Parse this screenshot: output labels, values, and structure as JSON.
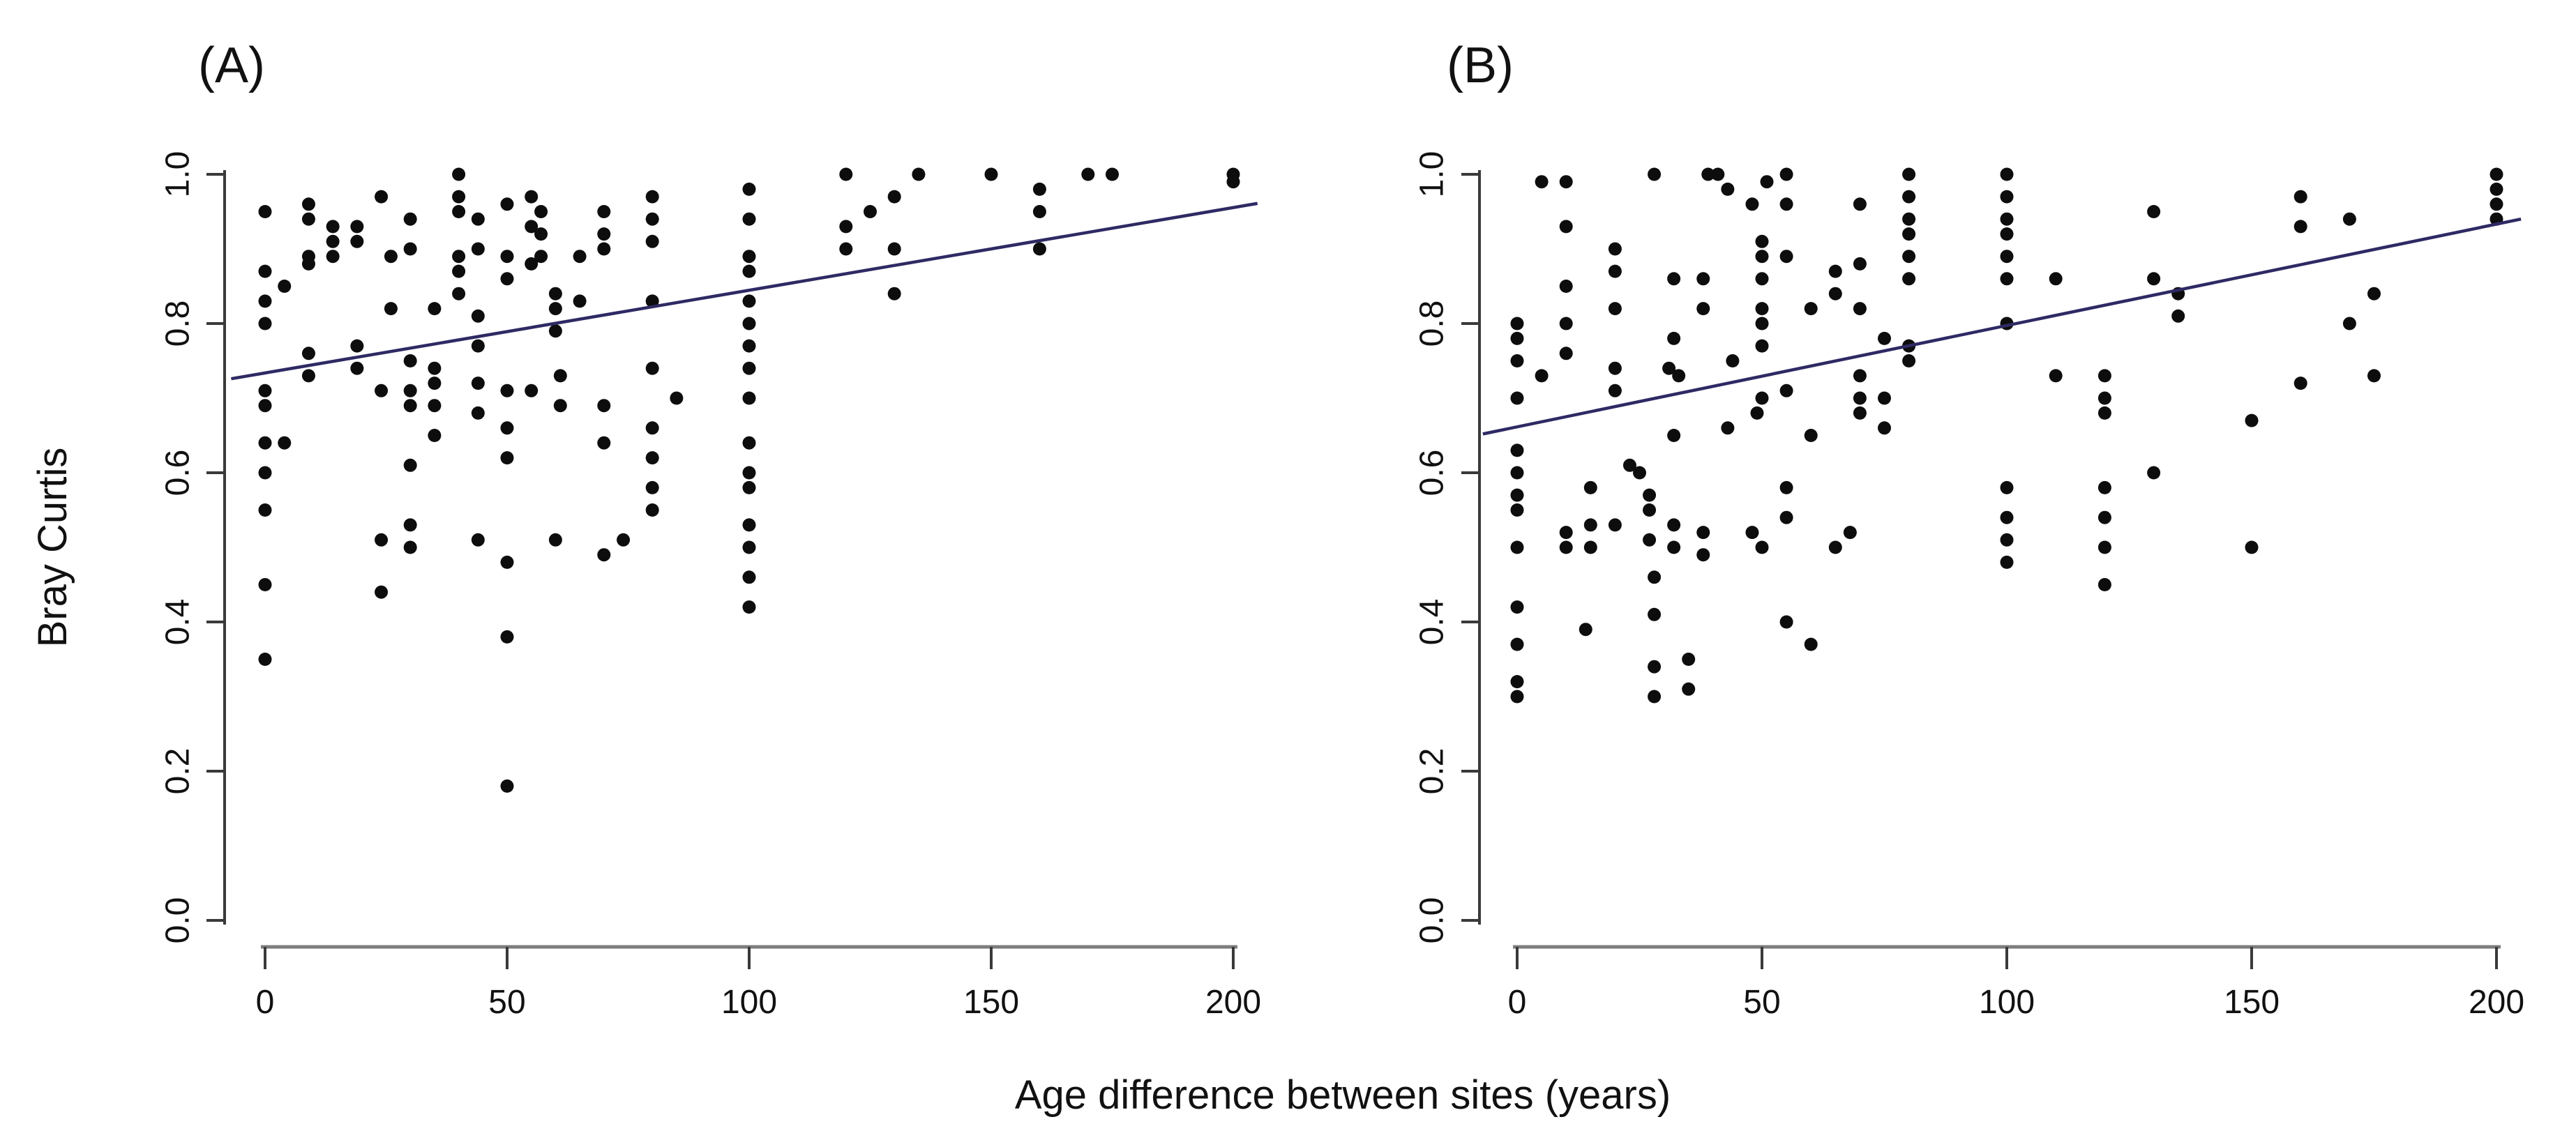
{
  "figure": {
    "xlabel": "Age difference between sites (years)",
    "ylabel": "Bray Curtis",
    "background_color": "#ffffff",
    "point_color": "#0d0d0d",
    "regression_line_color": "#2e2a64",
    "y_axis_color": "#3a3a3a",
    "x_axis_color": "#7d7d7d",
    "text_color": "#111111"
  },
  "chart_data": [
    {
      "type": "scatter",
      "panel_label": "(A)",
      "xlabel": "Age difference between sites (years)",
      "ylabel": "Bray Curtis",
      "x_tick_labels": [
        "0",
        "50",
        "100",
        "150",
        "200"
      ],
      "x_tick_values": [
        0,
        50,
        100,
        150,
        200
      ],
      "y_tick_labels": [
        "0.0",
        "0.2",
        "0.4",
        "0.6",
        "0.8",
        "1.0"
      ],
      "y_tick_values": [
        0.0,
        0.2,
        0.4,
        0.6,
        0.8,
        1.0
      ],
      "xlim": [
        -8,
        207
      ],
      "ylim": [
        -0.04,
        1.03
      ],
      "grid": false,
      "legend": "none",
      "regression_line": {
        "x_start": -7,
        "y_start": 0.726,
        "x_end": 205,
        "y_end": 0.961
      },
      "points": [
        [
          0,
          0.95
        ],
        [
          0,
          0.87
        ],
        [
          0,
          0.83
        ],
        [
          0,
          0.8
        ],
        [
          0,
          0.71
        ],
        [
          0,
          0.69
        ],
        [
          0,
          0.64
        ],
        [
          0,
          0.6
        ],
        [
          0,
          0.55
        ],
        [
          0,
          0.45
        ],
        [
          0,
          0.35
        ],
        [
          4,
          0.85
        ],
        [
          4,
          0.64
        ],
        [
          9,
          0.96
        ],
        [
          9,
          0.94
        ],
        [
          9,
          0.89
        ],
        [
          9,
          0.88
        ],
        [
          9,
          0.76
        ],
        [
          9,
          0.73
        ],
        [
          14,
          0.93
        ],
        [
          14,
          0.91
        ],
        [
          14,
          0.89
        ],
        [
          19,
          0.93
        ],
        [
          19,
          0.91
        ],
        [
          19,
          0.77
        ],
        [
          19,
          0.74
        ],
        [
          24,
          0.97
        ],
        [
          24,
          0.71
        ],
        [
          24,
          0.51
        ],
        [
          24,
          0.44
        ],
        [
          26,
          0.89
        ],
        [
          26,
          0.82
        ],
        [
          30,
          0.94
        ],
        [
          30,
          0.9
        ],
        [
          30,
          0.75
        ],
        [
          30,
          0.71
        ],
        [
          30,
          0.69
        ],
        [
          30,
          0.61
        ],
        [
          30,
          0.53
        ],
        [
          30,
          0.5
        ],
        [
          35,
          0.82
        ],
        [
          35,
          0.74
        ],
        [
          35,
          0.72
        ],
        [
          35,
          0.69
        ],
        [
          35,
          0.65
        ],
        [
          40,
          1.0
        ],
        [
          40,
          0.97
        ],
        [
          40,
          0.95
        ],
        [
          40,
          0.89
        ],
        [
          40,
          0.87
        ],
        [
          40,
          0.84
        ],
        [
          44,
          0.94
        ],
        [
          44,
          0.9
        ],
        [
          44,
          0.81
        ],
        [
          44,
          0.77
        ],
        [
          44,
          0.72
        ],
        [
          44,
          0.68
        ],
        [
          44,
          0.51
        ],
        [
          50,
          0.96
        ],
        [
          50,
          0.89
        ],
        [
          50,
          0.86
        ],
        [
          50,
          0.71
        ],
        [
          50,
          0.66
        ],
        [
          50,
          0.62
        ],
        [
          50,
          0.48
        ],
        [
          50,
          0.38
        ],
        [
          50,
          0.18
        ],
        [
          55,
          0.97
        ],
        [
          55,
          0.93
        ],
        [
          55,
          0.88
        ],
        [
          55,
          0.71
        ],
        [
          57,
          0.95
        ],
        [
          57,
          0.92
        ],
        [
          57,
          0.89
        ],
        [
          60,
          0.84
        ],
        [
          60,
          0.82
        ],
        [
          60,
          0.79
        ],
        [
          60,
          0.51
        ],
        [
          61,
          0.73
        ],
        [
          61,
          0.69
        ],
        [
          65,
          0.89
        ],
        [
          65,
          0.83
        ],
        [
          70,
          0.95
        ],
        [
          70,
          0.92
        ],
        [
          70,
          0.9
        ],
        [
          70,
          0.69
        ],
        [
          70,
          0.64
        ],
        [
          70,
          0.49
        ],
        [
          74,
          0.51
        ],
        [
          80,
          0.97
        ],
        [
          80,
          0.94
        ],
        [
          80,
          0.91
        ],
        [
          80,
          0.83
        ],
        [
          80,
          0.74
        ],
        [
          80,
          0.66
        ],
        [
          80,
          0.62
        ],
        [
          80,
          0.58
        ],
        [
          80,
          0.55
        ],
        [
          85,
          0.7
        ],
        [
          100,
          0.98
        ],
        [
          100,
          0.94
        ],
        [
          100,
          0.89
        ],
        [
          100,
          0.87
        ],
        [
          100,
          0.83
        ],
        [
          100,
          0.8
        ],
        [
          100,
          0.77
        ],
        [
          100,
          0.74
        ],
        [
          100,
          0.7
        ],
        [
          100,
          0.64
        ],
        [
          100,
          0.6
        ],
        [
          100,
          0.58
        ],
        [
          100,
          0.53
        ],
        [
          100,
          0.5
        ],
        [
          100,
          0.46
        ],
        [
          100,
          0.42
        ],
        [
          120,
          1.0
        ],
        [
          120,
          0.93
        ],
        [
          120,
          0.9
        ],
        [
          125,
          0.95
        ],
        [
          130,
          0.97
        ],
        [
          130,
          0.9
        ],
        [
          130,
          0.84
        ],
        [
          135,
          1.0
        ],
        [
          150,
          1.0
        ],
        [
          160,
          0.98
        ],
        [
          160,
          0.95
        ],
        [
          160,
          0.9
        ],
        [
          170,
          1.0
        ],
        [
          175,
          1.0
        ],
        [
          200,
          1.0
        ],
        [
          200,
          0.99
        ]
      ]
    },
    {
      "type": "scatter",
      "panel_label": "(B)",
      "xlabel": "Age difference between sites (years)",
      "ylabel": "Bray Curtis",
      "x_tick_labels": [
        "0",
        "50",
        "100",
        "150",
        "200"
      ],
      "x_tick_values": [
        0,
        50,
        100,
        150,
        200
      ],
      "y_tick_labels": [
        "0.0",
        "0.2",
        "0.4",
        "0.6",
        "0.8",
        "1.0"
      ],
      "y_tick_values": [
        0.0,
        0.2,
        0.4,
        0.6,
        0.8,
        1.0
      ],
      "xlim": [
        -8,
        207
      ],
      "ylim": [
        -0.04,
        1.03
      ],
      "grid": false,
      "legend": "none",
      "regression_line": {
        "x_start": -7,
        "y_start": 0.652,
        "x_end": 205,
        "y_end": 0.94
      },
      "points": [
        [
          0,
          0.8
        ],
        [
          0,
          0.78
        ],
        [
          0,
          0.75
        ],
        [
          0,
          0.7
        ],
        [
          0,
          0.63
        ],
        [
          0,
          0.6
        ],
        [
          0,
          0.57
        ],
        [
          0,
          0.55
        ],
        [
          0,
          0.5
        ],
        [
          0,
          0.42
        ],
        [
          0,
          0.37
        ],
        [
          0,
          0.32
        ],
        [
          0,
          0.3
        ],
        [
          5,
          0.99
        ],
        [
          5,
          0.73
        ],
        [
          10,
          0.99
        ],
        [
          10,
          0.93
        ],
        [
          10,
          0.85
        ],
        [
          10,
          0.8
        ],
        [
          10,
          0.76
        ],
        [
          10,
          0.52
        ],
        [
          10,
          0.5
        ],
        [
          14,
          0.39
        ],
        [
          15,
          0.58
        ],
        [
          15,
          0.53
        ],
        [
          15,
          0.5
        ],
        [
          20,
          0.9
        ],
        [
          20,
          0.87
        ],
        [
          20,
          0.82
        ],
        [
          20,
          0.74
        ],
        [
          20,
          0.71
        ],
        [
          20,
          0.53
        ],
        [
          23,
          0.61
        ],
        [
          25,
          0.6
        ],
        [
          28,
          1.0
        ],
        [
          27,
          0.57
        ],
        [
          27,
          0.55
        ],
        [
          27,
          0.51
        ],
        [
          28,
          0.46
        ],
        [
          28,
          0.41
        ],
        [
          28,
          0.34
        ],
        [
          28,
          0.3
        ],
        [
          32,
          0.86
        ],
        [
          32,
          0.78
        ],
        [
          31,
          0.74
        ],
        [
          33,
          0.73
        ],
        [
          32,
          0.65
        ],
        [
          32,
          0.53
        ],
        [
          32,
          0.5
        ],
        [
          35,
          0.35
        ],
        [
          35,
          0.31
        ],
        [
          39,
          1.0
        ],
        [
          41,
          1.0
        ],
        [
          38,
          0.86
        ],
        [
          38,
          0.82
        ],
        [
          38,
          0.52
        ],
        [
          38,
          0.49
        ],
        [
          43,
          0.98
        ],
        [
          44,
          0.75
        ],
        [
          43,
          0.66
        ],
        [
          48,
          0.96
        ],
        [
          51,
          0.99
        ],
        [
          50,
          0.91
        ],
        [
          50,
          0.89
        ],
        [
          50,
          0.86
        ],
        [
          50,
          0.82
        ],
        [
          50,
          0.8
        ],
        [
          50,
          0.77
        ],
        [
          50,
          0.7
        ],
        [
          49,
          0.68
        ],
        [
          48,
          0.52
        ],
        [
          50,
          0.5
        ],
        [
          55,
          1.0
        ],
        [
          55,
          0.96
        ],
        [
          55,
          0.89
        ],
        [
          55,
          0.71
        ],
        [
          55,
          0.58
        ],
        [
          55,
          0.54
        ],
        [
          55,
          0.4
        ],
        [
          60,
          0.82
        ],
        [
          60,
          0.65
        ],
        [
          60,
          0.37
        ],
        [
          65,
          0.87
        ],
        [
          65,
          0.84
        ],
        [
          65,
          0.5
        ],
        [
          68,
          0.52
        ],
        [
          70,
          0.96
        ],
        [
          70,
          0.88
        ],
        [
          70,
          0.82
        ],
        [
          70,
          0.73
        ],
        [
          70,
          0.7
        ],
        [
          70,
          0.68
        ],
        [
          75,
          0.78
        ],
        [
          75,
          0.7
        ],
        [
          75,
          0.66
        ],
        [
          80,
          1.0
        ],
        [
          80,
          0.97
        ],
        [
          80,
          0.94
        ],
        [
          80,
          0.92
        ],
        [
          80,
          0.89
        ],
        [
          80,
          0.86
        ],
        [
          80,
          0.77
        ],
        [
          80,
          0.75
        ],
        [
          100,
          1.0
        ],
        [
          100,
          0.97
        ],
        [
          100,
          0.94
        ],
        [
          100,
          0.92
        ],
        [
          100,
          0.89
        ],
        [
          100,
          0.86
        ],
        [
          100,
          0.8
        ],
        [
          100,
          0.58
        ],
        [
          100,
          0.54
        ],
        [
          100,
          0.51
        ],
        [
          100,
          0.48
        ],
        [
          110,
          0.86
        ],
        [
          110,
          0.73
        ],
        [
          120,
          0.73
        ],
        [
          120,
          0.7
        ],
        [
          120,
          0.68
        ],
        [
          120,
          0.58
        ],
        [
          120,
          0.54
        ],
        [
          120,
          0.5
        ],
        [
          120,
          0.45
        ],
        [
          130,
          0.95
        ],
        [
          130,
          0.86
        ],
        [
          130,
          0.6
        ],
        [
          135,
          0.84
        ],
        [
          135,
          0.81
        ],
        [
          150,
          0.67
        ],
        [
          150,
          0.5
        ],
        [
          160,
          0.97
        ],
        [
          160,
          0.93
        ],
        [
          160,
          0.72
        ],
        [
          170,
          0.94
        ],
        [
          170,
          0.8
        ],
        [
          175,
          0.84
        ],
        [
          175,
          0.73
        ],
        [
          200,
          1.0
        ],
        [
          200,
          0.98
        ],
        [
          200,
          0.96
        ],
        [
          200,
          0.94
        ]
      ]
    }
  ]
}
